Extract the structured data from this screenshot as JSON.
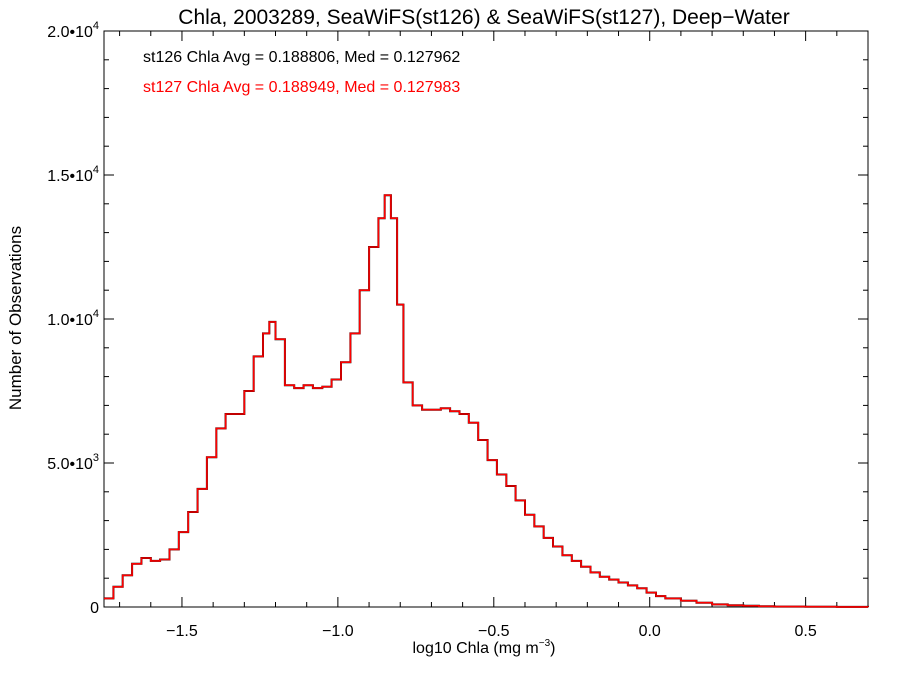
{
  "chart_data": {
    "type": "line",
    "title": "Chla, 2003289, SeaWiFS(st126) & SeaWiFS(st127), Deep−Water",
    "xlabel": "log10 Chla (mg m",
    "xlabel_sup": "−3",
    "xlabel_close": ")",
    "ylabel": "Number of Observations",
    "xlim": [
      -1.75,
      0.7
    ],
    "ylim": [
      0,
      20000
    ],
    "xticks": [
      {
        "value": -1.5,
        "label": "−1.5"
      },
      {
        "value": -1.0,
        "label": "−1.0"
      },
      {
        "value": -0.5,
        "label": "−0.5"
      },
      {
        "value": 0.0,
        "label": "0.0"
      },
      {
        "value": 0.5,
        "label": "0.5"
      }
    ],
    "yticks": [
      {
        "value": 0,
        "mantissa": "0",
        "exp": ""
      },
      {
        "value": 5000,
        "mantissa": "5.0•10",
        "exp": "3"
      },
      {
        "value": 10000,
        "mantissa": "1.0•10",
        "exp": "4"
      },
      {
        "value": 15000,
        "mantissa": "1.5•10",
        "exp": "4"
      },
      {
        "value": 20000,
        "mantissa": "2.0•10",
        "exp": "4"
      }
    ],
    "annotations": [
      {
        "text": "st126 Chla Avg = 0.188806, Med = 0.127962",
        "color": "#000000"
      },
      {
        "text": "st127 Chla Avg = 0.188949, Med = 0.127983",
        "color": "#ff0000"
      }
    ],
    "series": [
      {
        "color": "#000000",
        "x": [
          -1.75,
          -1.72,
          -1.69,
          -1.66,
          -1.63,
          -1.6,
          -1.57,
          -1.54,
          -1.51,
          -1.48,
          -1.45,
          -1.42,
          -1.39,
          -1.36,
          -1.33,
          -1.3,
          -1.27,
          -1.24,
          -1.22,
          -1.2,
          -1.17,
          -1.14,
          -1.11,
          -1.08,
          -1.05,
          -1.02,
          -0.99,
          -0.96,
          -0.93,
          -0.9,
          -0.87,
          -0.85,
          -0.83,
          -0.81,
          -0.79,
          -0.76,
          -0.73,
          -0.7,
          -0.67,
          -0.64,
          -0.61,
          -0.58,
          -0.55,
          -0.52,
          -0.49,
          -0.46,
          -0.43,
          -0.4,
          -0.37,
          -0.34,
          -0.31,
          -0.28,
          -0.25,
          -0.22,
          -0.19,
          -0.16,
          -0.13,
          -0.1,
          -0.07,
          -0.04,
          -0.01,
          0.02,
          0.05,
          0.1,
          0.15,
          0.2,
          0.25,
          0.3,
          0.35,
          0.4,
          0.5,
          0.6,
          0.7
        ],
        "y": [
          300,
          700,
          1100,
          1500,
          1700,
          1600,
          1650,
          2000,
          2600,
          3300,
          4100,
          5200,
          6200,
          6700,
          6700,
          7500,
          8700,
          9500,
          9900,
          9300,
          7700,
          7600,
          7700,
          7600,
          7650,
          7900,
          8500,
          9500,
          11000,
          12500,
          13500,
          14300,
          13500,
          10500,
          7800,
          7000,
          6850,
          6850,
          6900,
          6800,
          6700,
          6400,
          5800,
          5100,
          4600,
          4200,
          3700,
          3200,
          2800,
          2400,
          2100,
          1800,
          1600,
          1400,
          1200,
          1050,
          950,
          850,
          750,
          650,
          500,
          380,
          300,
          220,
          150,
          90,
          60,
          40,
          25,
          15,
          10,
          5,
          0
        ]
      },
      {
        "color": "#ff0000",
        "x": [
          -1.75,
          -1.72,
          -1.69,
          -1.66,
          -1.63,
          -1.6,
          -1.57,
          -1.54,
          -1.51,
          -1.48,
          -1.45,
          -1.42,
          -1.39,
          -1.36,
          -1.33,
          -1.3,
          -1.27,
          -1.24,
          -1.22,
          -1.2,
          -1.17,
          -1.14,
          -1.11,
          -1.08,
          -1.05,
          -1.02,
          -0.99,
          -0.96,
          -0.93,
          -0.9,
          -0.87,
          -0.85,
          -0.83,
          -0.81,
          -0.79,
          -0.76,
          -0.73,
          -0.7,
          -0.67,
          -0.64,
          -0.61,
          -0.58,
          -0.55,
          -0.52,
          -0.49,
          -0.46,
          -0.43,
          -0.4,
          -0.37,
          -0.34,
          -0.31,
          -0.28,
          -0.25,
          -0.22,
          -0.19,
          -0.16,
          -0.13,
          -0.1,
          -0.07,
          -0.04,
          -0.01,
          0.02,
          0.05,
          0.1,
          0.15,
          0.2,
          0.25,
          0.3,
          0.35,
          0.4,
          0.5,
          0.6,
          0.7
        ],
        "y": [
          300,
          700,
          1100,
          1500,
          1700,
          1600,
          1650,
          2000,
          2600,
          3300,
          4100,
          5200,
          6200,
          6700,
          6700,
          7500,
          8700,
          9500,
          9900,
          9300,
          7700,
          7600,
          7700,
          7600,
          7650,
          7900,
          8500,
          9500,
          11000,
          12500,
          13500,
          14300,
          13500,
          10500,
          7800,
          7000,
          6850,
          6850,
          6900,
          6800,
          6700,
          6400,
          5800,
          5100,
          4600,
          4200,
          3700,
          3200,
          2800,
          2400,
          2100,
          1800,
          1600,
          1400,
          1200,
          1050,
          950,
          850,
          750,
          650,
          500,
          380,
          300,
          220,
          150,
          90,
          60,
          40,
          25,
          15,
          10,
          5,
          0
        ]
      }
    ]
  }
}
